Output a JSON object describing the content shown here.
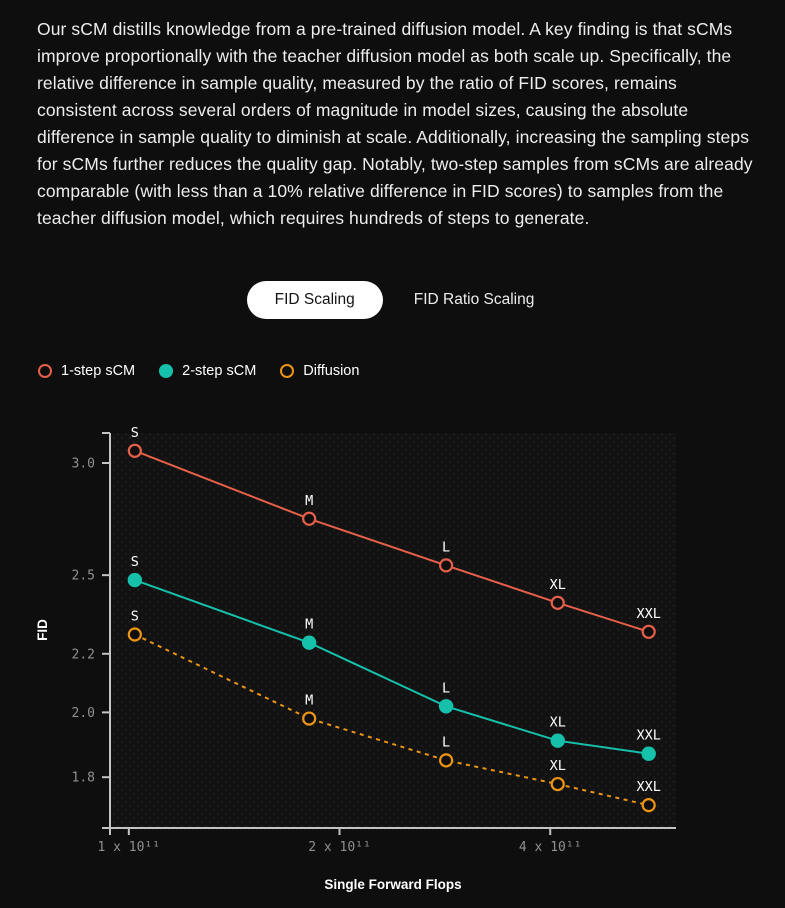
{
  "intro": {
    "text": "Our sCM distills knowledge from a pre-trained diffusion model. A key finding is that sCMs improve proportionally with the teacher diffusion model as both scale up. Specifically, the relative difference in sample quality, measured by the ratio of FID scores, remains consistent across several orders of magnitude in model sizes, causing the absolute difference in sample quality to diminish at scale. Additionally, increasing the sampling steps for sCMs further reduces the quality gap. Notably, two-step samples from sCMs are already comparable (with less than a 10% relative difference in FID scores) to samples from the teacher diffusion model, which requires hundreds of steps to generate."
  },
  "tabs": {
    "items": [
      {
        "label": "FID Scaling",
        "selected": true
      },
      {
        "label": "FID Ratio Scaling",
        "selected": false
      }
    ]
  },
  "legend": {
    "items": [
      {
        "label": "1-step sCM"
      },
      {
        "label": "2-step sCM"
      },
      {
        "label": "Diffusion"
      }
    ]
  },
  "chart_data": {
    "type": "line",
    "title": "",
    "xlabel": "Single Forward Flops",
    "ylabel": "FID",
    "x_scale": "log",
    "y_scale": "log",
    "grid": false,
    "legend_position": "top-left",
    "categories": [
      "S",
      "M",
      "L",
      "XL",
      "XXL"
    ],
    "x": [
      102000000000.0,
      181000000000.0,
      284000000000.0,
      410000000000.0,
      553000000000.0
    ],
    "series": [
      {
        "name": "1-step sCM",
        "color": "#e66049",
        "marker": "open",
        "line": "solid",
        "values": [
          3.06,
          2.74,
          2.54,
          2.39,
          2.28
        ]
      },
      {
        "name": "2-step sCM",
        "color": "#16c1ab",
        "marker": "filled",
        "line": "solid",
        "values": [
          2.48,
          2.24,
          2.02,
          1.91,
          1.87
        ]
      },
      {
        "name": "Diffusion",
        "color": "#ec9413",
        "marker": "open",
        "line": "dashed",
        "values": [
          2.27,
          1.98,
          1.85,
          1.78,
          1.72
        ]
      }
    ],
    "y_ticks": [
      {
        "value": 3.0,
        "label": "3.0"
      },
      {
        "value": 2.5,
        "label": "2.5"
      },
      {
        "value": 2.2,
        "label": "2.2"
      },
      {
        "value": 2.0,
        "label": "2.0"
      },
      {
        "value": 1.8,
        "label": "1.8"
      }
    ],
    "x_ticks": [
      {
        "value": 100000000000.0,
        "label": "1 x 10¹¹"
      },
      {
        "value": 200000000000.0,
        "label": "2 x 10¹¹"
      },
      {
        "value": 400000000000.0,
        "label": "4 x 10¹¹"
      }
    ],
    "xlim": [
      94000000000.0,
      605000000000.0
    ],
    "ylim": [
      1.66,
      3.15
    ]
  }
}
